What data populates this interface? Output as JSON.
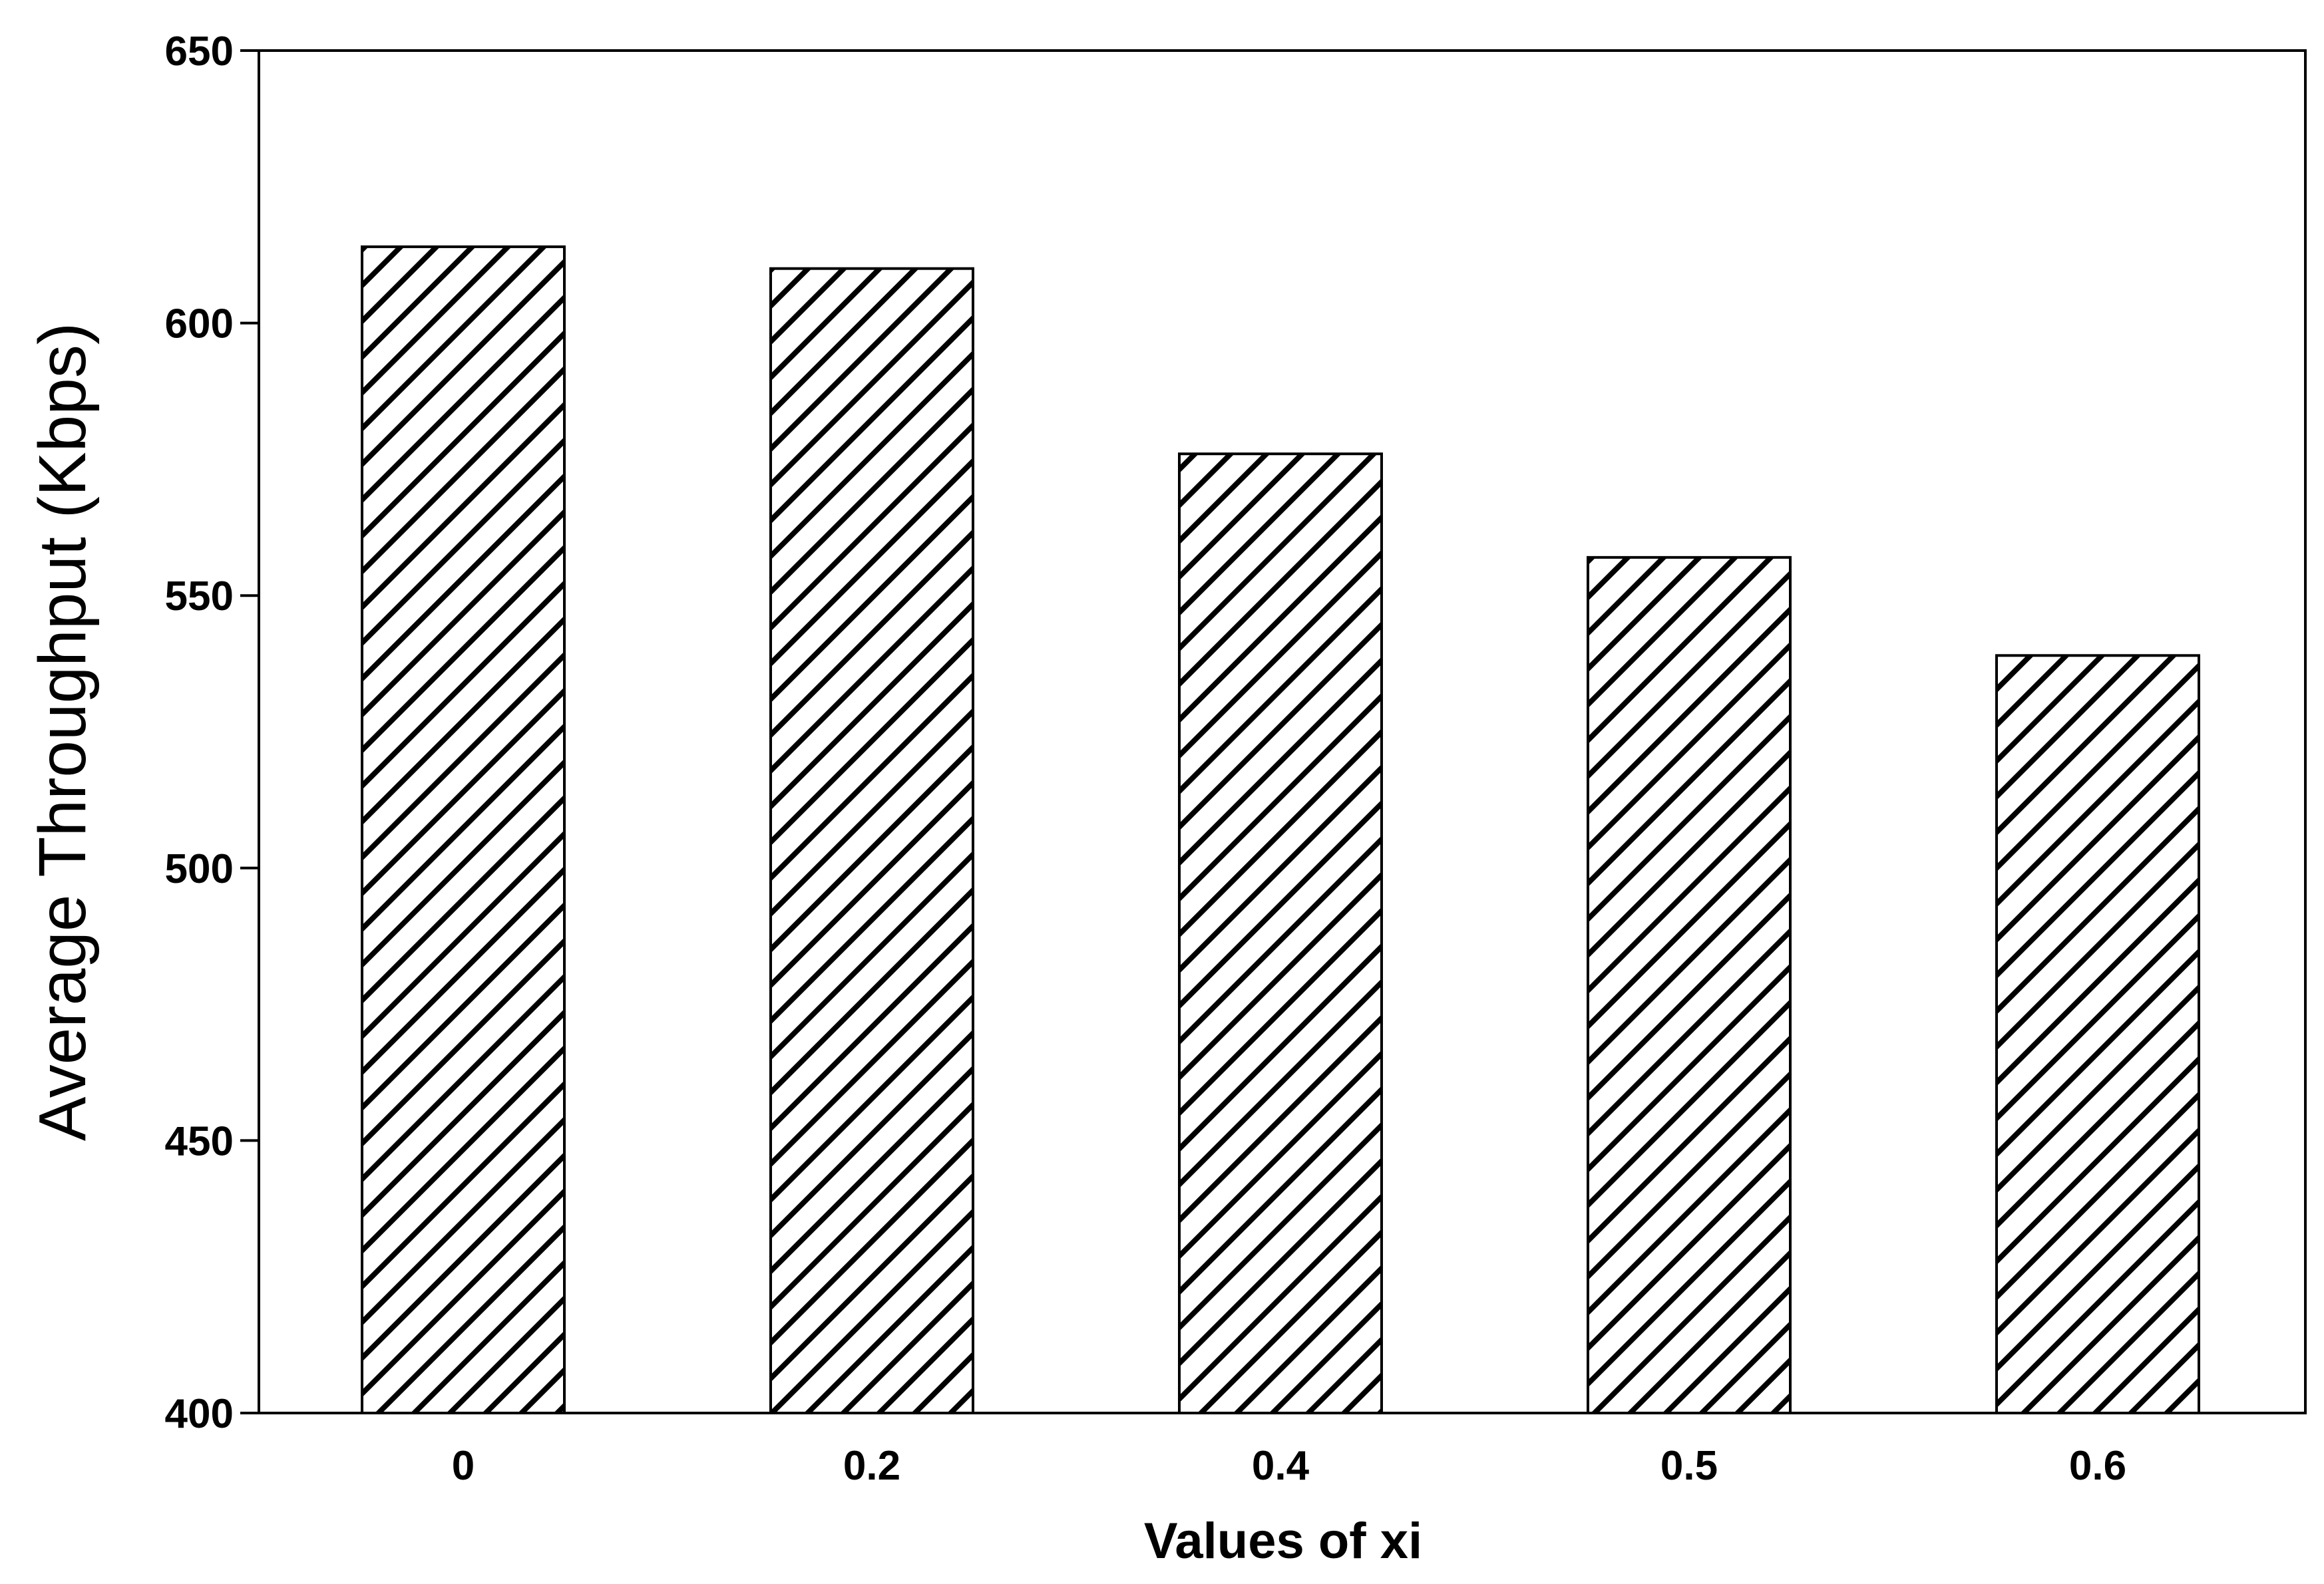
{
  "chart_data": {
    "type": "bar",
    "title": "",
    "xlabel": "Values of xi",
    "ylabel": "Average Throughput (Kbps)",
    "categories": [
      "0",
      "0.2",
      "0.4",
      "0.5",
      "0.6"
    ],
    "values": [
      614,
      610,
      576,
      557,
      539
    ],
    "ylim": [
      400,
      650
    ],
    "yticks": [
      400,
      450,
      500,
      550,
      600,
      650
    ],
    "ytick_labels": [
      "400",
      "450",
      "500",
      "550",
      "600",
      "650"
    ],
    "grid": false,
    "legend": "none",
    "bar_fill": "diagonal-hatch",
    "colors": {
      "bar_stroke": "#000000",
      "hatch": "#000000",
      "background": "#ffffff"
    }
  }
}
